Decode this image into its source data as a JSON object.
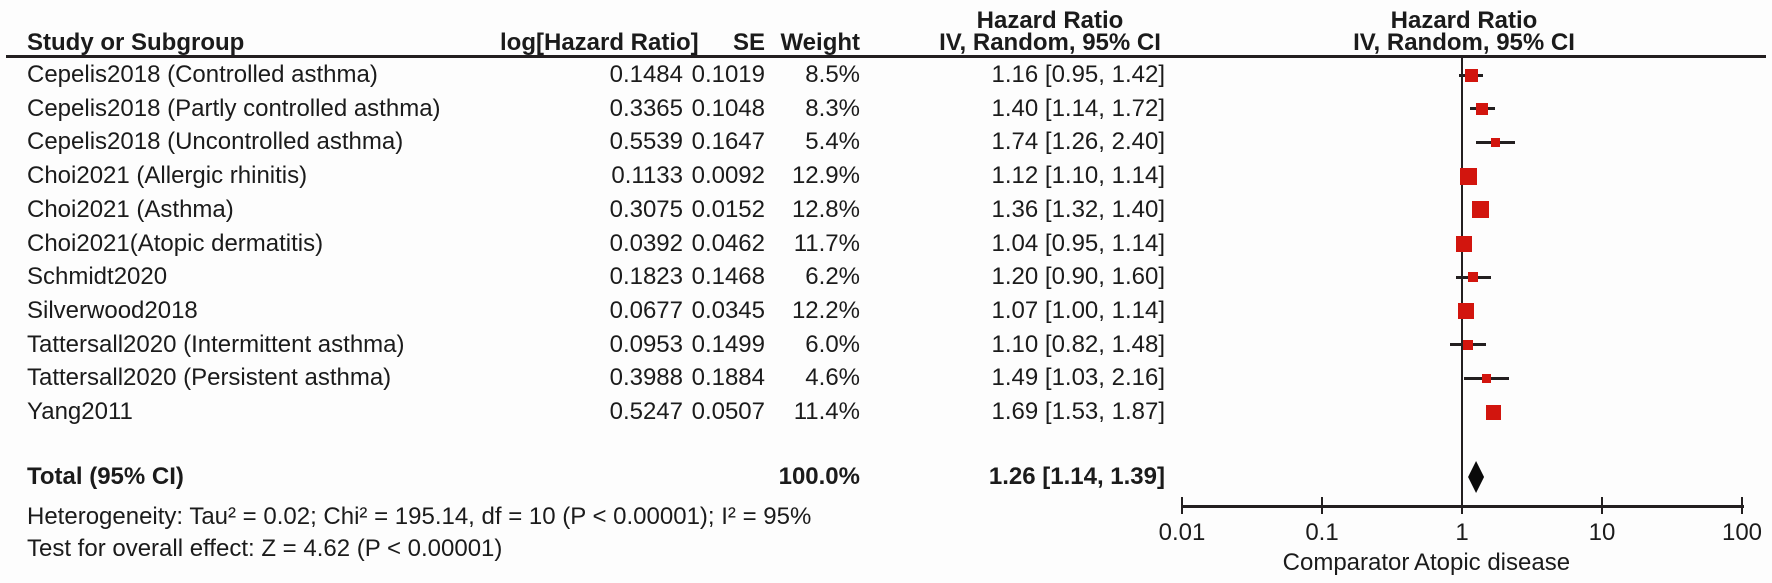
{
  "headers": {
    "study": "Study or Subgroup",
    "log_hr": "log[Hazard Ratio]",
    "se": "SE",
    "weight": "Weight",
    "hr_text_top": "Hazard Ratio",
    "hr_text_bottom": "IV, Random, 95% CI",
    "hr_plot_top": "Hazard Ratio",
    "hr_plot_bottom": "IV, Random, 95% CI"
  },
  "rows": [
    {
      "study": "Cepelis2018 (Controlled asthma)",
      "log_hr": "0.1484",
      "se": "0.1019",
      "weight": "8.5%",
      "weight_pct": 8.5,
      "hr_ci": "1.16 [0.95, 1.42]",
      "hr": 1.16,
      "ci_low": 0.95,
      "ci_high": 1.42
    },
    {
      "study": "Cepelis2018 (Partly controlled asthma)",
      "log_hr": "0.3365",
      "se": "0.1048",
      "weight": "8.3%",
      "weight_pct": 8.3,
      "hr_ci": "1.40 [1.14, 1.72]",
      "hr": 1.4,
      "ci_low": 1.14,
      "ci_high": 1.72
    },
    {
      "study": "Cepelis2018 (Uncontrolled asthma)",
      "log_hr": "0.5539",
      "se": "0.1647",
      "weight": "5.4%",
      "weight_pct": 5.4,
      "hr_ci": "1.74 [1.26, 2.40]",
      "hr": 1.74,
      "ci_low": 1.26,
      "ci_high": 2.4
    },
    {
      "study": "Choi2021 (Allergic rhinitis)",
      "log_hr": "0.1133",
      "se": "0.0092",
      "weight": "12.9%",
      "weight_pct": 12.9,
      "hr_ci": "1.12 [1.10, 1.14]",
      "hr": 1.12,
      "ci_low": 1.1,
      "ci_high": 1.14
    },
    {
      "study": "Choi2021 (Asthma)",
      "log_hr": "0.3075",
      "se": "0.0152",
      "weight": "12.8%",
      "weight_pct": 12.8,
      "hr_ci": "1.36 [1.32, 1.40]",
      "hr": 1.36,
      "ci_low": 1.32,
      "ci_high": 1.4
    },
    {
      "study": "Choi2021(Atopic dermatitis)",
      "log_hr": "0.0392",
      "se": "0.0462",
      "weight": "11.7%",
      "weight_pct": 11.7,
      "hr_ci": "1.04 [0.95, 1.14]",
      "hr": 1.04,
      "ci_low": 0.95,
      "ci_high": 1.14
    },
    {
      "study": "Schmidt2020",
      "log_hr": "0.1823",
      "se": "0.1468",
      "weight": "6.2%",
      "weight_pct": 6.2,
      "hr_ci": "1.20 [0.90, 1.60]",
      "hr": 1.2,
      "ci_low": 0.9,
      "ci_high": 1.6
    },
    {
      "study": "Silverwood2018",
      "log_hr": "0.0677",
      "se": "0.0345",
      "weight": "12.2%",
      "weight_pct": 12.2,
      "hr_ci": "1.07 [1.00, 1.14]",
      "hr": 1.07,
      "ci_low": 1.0,
      "ci_high": 1.14
    },
    {
      "study": "Tattersall2020 (Intermittent asthma)",
      "log_hr": "0.0953",
      "se": "0.1499",
      "weight": "6.0%",
      "weight_pct": 6.0,
      "hr_ci": "1.10 [0.82, 1.48]",
      "hr": 1.1,
      "ci_low": 0.82,
      "ci_high": 1.48
    },
    {
      "study": "Tattersall2020 (Persistent asthma)",
      "log_hr": "0.3988",
      "se": "0.1884",
      "weight": "4.6%",
      "weight_pct": 4.6,
      "hr_ci": "1.49 [1.03, 2.16]",
      "hr": 1.49,
      "ci_low": 1.03,
      "ci_high": 2.16
    },
    {
      "study": "Yang2011",
      "log_hr": "0.5247",
      "se": "0.0507",
      "weight": "11.4%",
      "weight_pct": 11.4,
      "hr_ci": "1.69 [1.53, 1.87]",
      "hr": 1.69,
      "ci_low": 1.53,
      "ci_high": 1.87
    }
  ],
  "total": {
    "label": "Total (95% CI)",
    "weight": "100.0%",
    "weight_pct": 100.0,
    "hr_ci": "1.26 [1.14, 1.39]",
    "hr": 1.26,
    "ci_low": 1.14,
    "ci_high": 1.39
  },
  "footnotes": {
    "heterogeneity": "Heterogeneity: Tau² = 0.02; Chi² = 195.14, df = 10 (P < 0.00001); I² = 95%",
    "overall_effect": "Test for overall effect: Z = 4.62 (P < 0.00001)"
  },
  "axis": {
    "ticks": [
      "0.01",
      "0.1",
      "1",
      "10",
      "100"
    ],
    "tick_values": [
      0.01,
      0.1,
      1,
      10,
      100
    ],
    "left_label": "Comparator",
    "right_label": "Atopic disease"
  },
  "colors": {
    "marker": "#d2150e",
    "diamond": "#0a0a0a",
    "line": "#231f20",
    "text": "#1b1b1b"
  },
  "chart_data": {
    "type": "scatter",
    "subtype": "forest-plot-meta-analysis",
    "effect_measure": "Hazard Ratio",
    "model": "IV, Random, 95% CI",
    "x_scale": "log10",
    "xlim": [
      0.01,
      100
    ],
    "x_ticks": [
      0.01,
      0.1,
      1,
      10,
      100
    ],
    "x_direction_labels": {
      "left": "Comparator",
      "right": "Atopic disease"
    },
    "studies": [
      {
        "label": "Cepelis2018 (Controlled asthma)",
        "log_hr": 0.1484,
        "se": 0.1019,
        "weight_pct": 8.5,
        "hr": 1.16,
        "ci95": [
          0.95,
          1.42
        ]
      },
      {
        "label": "Cepelis2018 (Partly controlled asthma)",
        "log_hr": 0.3365,
        "se": 0.1048,
        "weight_pct": 8.3,
        "hr": 1.4,
        "ci95": [
          1.14,
          1.72
        ]
      },
      {
        "label": "Cepelis2018 (Uncontrolled asthma)",
        "log_hr": 0.5539,
        "se": 0.1647,
        "weight_pct": 5.4,
        "hr": 1.74,
        "ci95": [
          1.26,
          2.4
        ]
      },
      {
        "label": "Choi2021 (Allergic rhinitis)",
        "log_hr": 0.1133,
        "se": 0.0092,
        "weight_pct": 12.9,
        "hr": 1.12,
        "ci95": [
          1.1,
          1.14
        ]
      },
      {
        "label": "Choi2021 (Asthma)",
        "log_hr": 0.3075,
        "se": 0.0152,
        "weight_pct": 12.8,
        "hr": 1.36,
        "ci95": [
          1.32,
          1.4
        ]
      },
      {
        "label": "Choi2021(Atopic dermatitis)",
        "log_hr": 0.0392,
        "se": 0.0462,
        "weight_pct": 11.7,
        "hr": 1.04,
        "ci95": [
          0.95,
          1.14
        ]
      },
      {
        "label": "Schmidt2020",
        "log_hr": 0.1823,
        "se": 0.1468,
        "weight_pct": 6.2,
        "hr": 1.2,
        "ci95": [
          0.9,
          1.6
        ]
      },
      {
        "label": "Silverwood2018",
        "log_hr": 0.0677,
        "se": 0.0345,
        "weight_pct": 12.2,
        "hr": 1.07,
        "ci95": [
          1.0,
          1.14
        ]
      },
      {
        "label": "Tattersall2020 (Intermittent asthma)",
        "log_hr": 0.0953,
        "se": 0.1499,
        "weight_pct": 6.0,
        "hr": 1.1,
        "ci95": [
          0.82,
          1.48
        ]
      },
      {
        "label": "Tattersall2020 (Persistent asthma)",
        "log_hr": 0.3988,
        "se": 0.1884,
        "weight_pct": 4.6,
        "hr": 1.49,
        "ci95": [
          1.03,
          2.16
        ]
      },
      {
        "label": "Yang2011",
        "log_hr": 0.5247,
        "se": 0.0507,
        "weight_pct": 11.4,
        "hr": 1.69,
        "ci95": [
          1.53,
          1.87
        ]
      }
    ],
    "total": {
      "label": "Total (95% CI)",
      "weight_pct": 100.0,
      "hr": 1.26,
      "ci95": [
        1.14,
        1.39
      ]
    },
    "heterogeneity": {
      "tau2": 0.02,
      "chi2": 195.14,
      "df": 10,
      "p": "< 0.00001",
      "i2_pct": 95
    },
    "overall_effect": {
      "z": 4.62,
      "p": "< 0.00001"
    }
  }
}
